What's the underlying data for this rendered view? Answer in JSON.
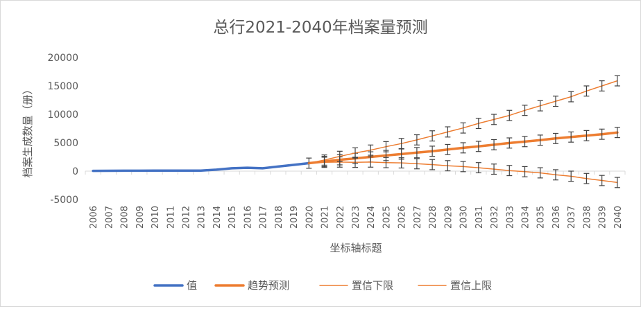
{
  "chart_data": {
    "type": "line",
    "title": "总行2021-2040年档案量预测",
    "xlabel": "坐标轴标题",
    "ylabel": "档案生成数量（册）",
    "ylim": [
      -5000,
      20000
    ],
    "yticks": [
      -5000,
      0,
      5000,
      10000,
      15000,
      20000
    ],
    "categories": [
      "2006",
      "2007",
      "2008",
      "2009",
      "2010",
      "2011",
      "2012",
      "2013",
      "2014",
      "2015",
      "2016",
      "2017",
      "2018",
      "2019",
      "2020",
      "2021",
      "2022",
      "2023",
      "2024",
      "2025",
      "2026",
      "2027",
      "2028",
      "2029",
      "2030",
      "2031",
      "2032",
      "2033",
      "2034",
      "2035",
      "2036",
      "2037",
      "2038",
      "2039",
      "2040"
    ],
    "grid": false,
    "legend_position": "bottom",
    "series": [
      {
        "name": "值",
        "color": "#4472C4",
        "values": [
          50,
          60,
          70,
          70,
          80,
          80,
          90,
          100,
          250,
          500,
          600,
          500,
          800,
          1100,
          1400,
          null,
          null,
          null,
          null,
          null,
          null,
          null,
          null,
          null,
          null,
          null,
          null,
          null,
          null,
          null,
          null,
          null,
          null,
          null,
          null
        ]
      },
      {
        "name": "趋势预测",
        "color": "#ED7D31",
        "values": [
          null,
          null,
          null,
          null,
          null,
          null,
          null,
          null,
          null,
          null,
          null,
          null,
          null,
          null,
          1400,
          1700,
          2000,
          2250,
          2500,
          2750,
          3000,
          3250,
          3500,
          3800,
          4100,
          4350,
          4650,
          4950,
          5200,
          5450,
          5750,
          6000,
          6250,
          6500,
          6800
        ]
      },
      {
        "name": "置信下限",
        "color": "#ED7D31",
        "values": [
          null,
          null,
          null,
          null,
          null,
          null,
          null,
          null,
          null,
          null,
          null,
          null,
          null,
          null,
          1400,
          1550,
          1600,
          1550,
          1600,
          1500,
          1450,
          1300,
          1150,
          950,
          800,
          600,
          350,
          100,
          -100,
          -300,
          -650,
          -900,
          -1300,
          -1650,
          -2000
        ]
      },
      {
        "name": "置信上限",
        "color": "#ED7D31",
        "values": [
          null,
          null,
          null,
          null,
          null,
          null,
          null,
          null,
          null,
          null,
          null,
          null,
          null,
          null,
          1400,
          1950,
          2600,
          3200,
          3700,
          4300,
          4850,
          5500,
          6200,
          6900,
          7600,
          8400,
          9100,
          9800,
          10700,
          11500,
          12300,
          13100,
          14100,
          15000,
          15900
        ]
      }
    ],
    "error_bars_on": [
      "趋势预测",
      "置信下限",
      "置信上限"
    ],
    "error_bar_size": 900
  }
}
